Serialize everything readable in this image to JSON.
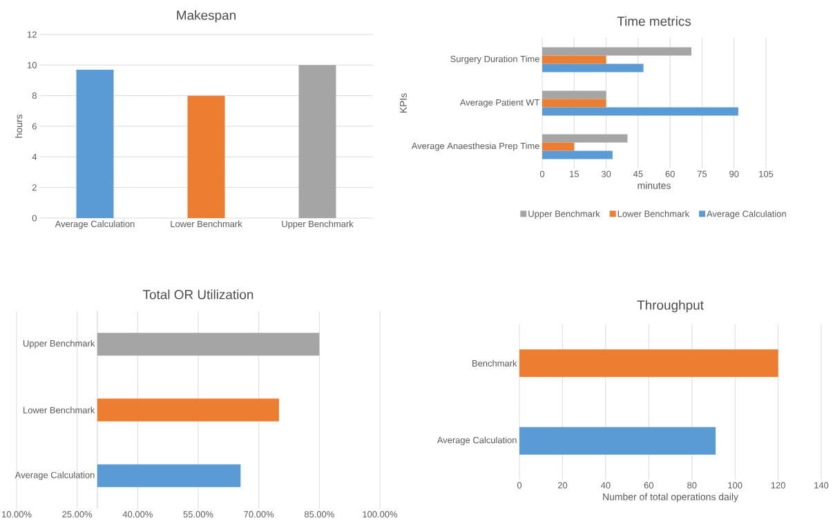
{
  "chart_data": [
    {
      "type": "bar",
      "title": "Makespan",
      "ylabel": "hours",
      "categories": [
        "Average Calculation",
        "Lower Benchmark",
        "Upper Benchmark"
      ],
      "values": [
        9.7,
        8,
        10
      ],
      "colors": [
        "#5b9bd5",
        "#ed7d31",
        "#a5a5a5"
      ],
      "ylim": [
        0,
        12
      ],
      "yticks": [
        0,
        2,
        4,
        6,
        8,
        10,
        12
      ],
      "grid": "y"
    },
    {
      "type": "bar",
      "orientation": "horizontal",
      "title": "Time metrics",
      "xlabel": "minutes",
      "ylabel": "KPIs",
      "categories": [
        "Surgery Duration Time",
        "Average Patient WT",
        "Average Anaesthesia Prep Time"
      ],
      "series": [
        {
          "name": "Upper Benchmark",
          "color": "#a5a5a5",
          "values": [
            70,
            30,
            40
          ]
        },
        {
          "name": "Lower Benchmark",
          "color": "#ed7d31",
          "values": [
            30,
            30,
            15
          ]
        },
        {
          "name": "Average Calculation",
          "color": "#5b9bd5",
          "values": [
            47.5,
            92,
            33
          ]
        }
      ],
      "xlim": [
        0,
        105
      ],
      "xticks": [
        0,
        15,
        30,
        45,
        60,
        75,
        90,
        105
      ],
      "grid": "x",
      "legend": "bottom"
    },
    {
      "type": "bar",
      "orientation": "horizontal",
      "title": "Total OR Utilization",
      "categories": [
        "Upper Benchmark",
        "Lower Benchmark",
        "Average Calculation"
      ],
      "base": [
        30,
        30,
        30
      ],
      "values": [
        55,
        45,
        35.5
      ],
      "colors": [
        "#a5a5a5",
        "#ed7d31",
        "#5b9bd5"
      ],
      "xlim": [
        10,
        100
      ],
      "xticks": [
        {
          "value": 10,
          "label": "10.00%"
        },
        {
          "value": 25,
          "label": "25.00%"
        },
        {
          "value": 40,
          "label": "40.00%"
        },
        {
          "value": 55,
          "label": "55.00%"
        },
        {
          "value": 70,
          "label": "70.00%"
        },
        {
          "value": 85,
          "label": "85.00%"
        },
        {
          "value": 100,
          "label": "100.00%"
        }
      ],
      "grid": "x",
      "ref_lines": [
        {
          "axis": "x",
          "value": 30,
          "color": "#bfbfbf"
        }
      ]
    },
    {
      "type": "bar",
      "orientation": "horizontal",
      "title": "Throughput",
      "xlabel": "Number of total operations daily",
      "categories": [
        "Benchmark",
        "Average Calculation"
      ],
      "values": [
        120,
        91
      ],
      "colors": [
        "#ed7d31",
        "#5b9bd5"
      ],
      "xlim": [
        0,
        140
      ],
      "xticks": [
        0,
        20,
        40,
        60,
        80,
        100,
        120,
        140
      ],
      "grid": "x"
    }
  ]
}
